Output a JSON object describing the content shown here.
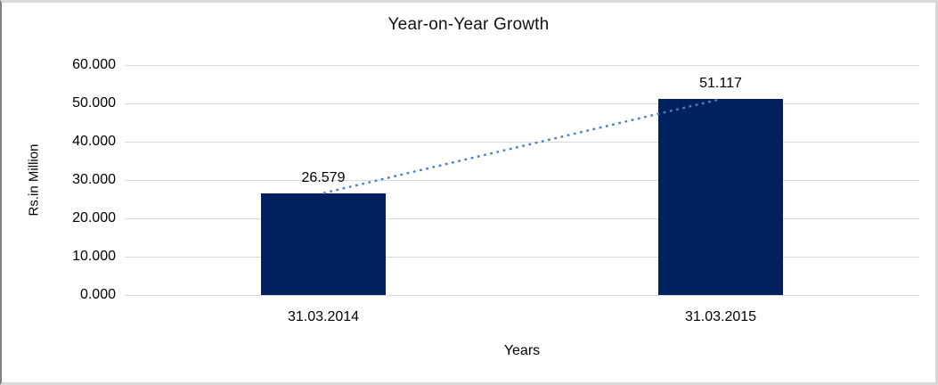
{
  "chart_data": {
    "type": "bar",
    "title": "Year-on-Year Growth",
    "xlabel": "Years",
    "ylabel": "Rs.in Million",
    "categories": [
      "31.03.2014",
      "31.03.2015"
    ],
    "values": [
      26.579,
      51.117
    ],
    "data_labels": [
      "26.579",
      "51.117"
    ],
    "ylim": [
      0,
      60
    ],
    "ytick_labels": [
      "0.000",
      "10.000",
      "20.000",
      "30.000",
      "40.000",
      "50.000",
      "60.000"
    ],
    "ytick_values": [
      0,
      10,
      20,
      30,
      40,
      50,
      60
    ],
    "grid": true,
    "legend": false,
    "trendline": {
      "style": "dotted",
      "connects": "bar tops"
    },
    "colors": {
      "bar": "#002060",
      "trend": "#4f81bd",
      "gridline": "#d9d9d9",
      "text": "#000000"
    }
  }
}
